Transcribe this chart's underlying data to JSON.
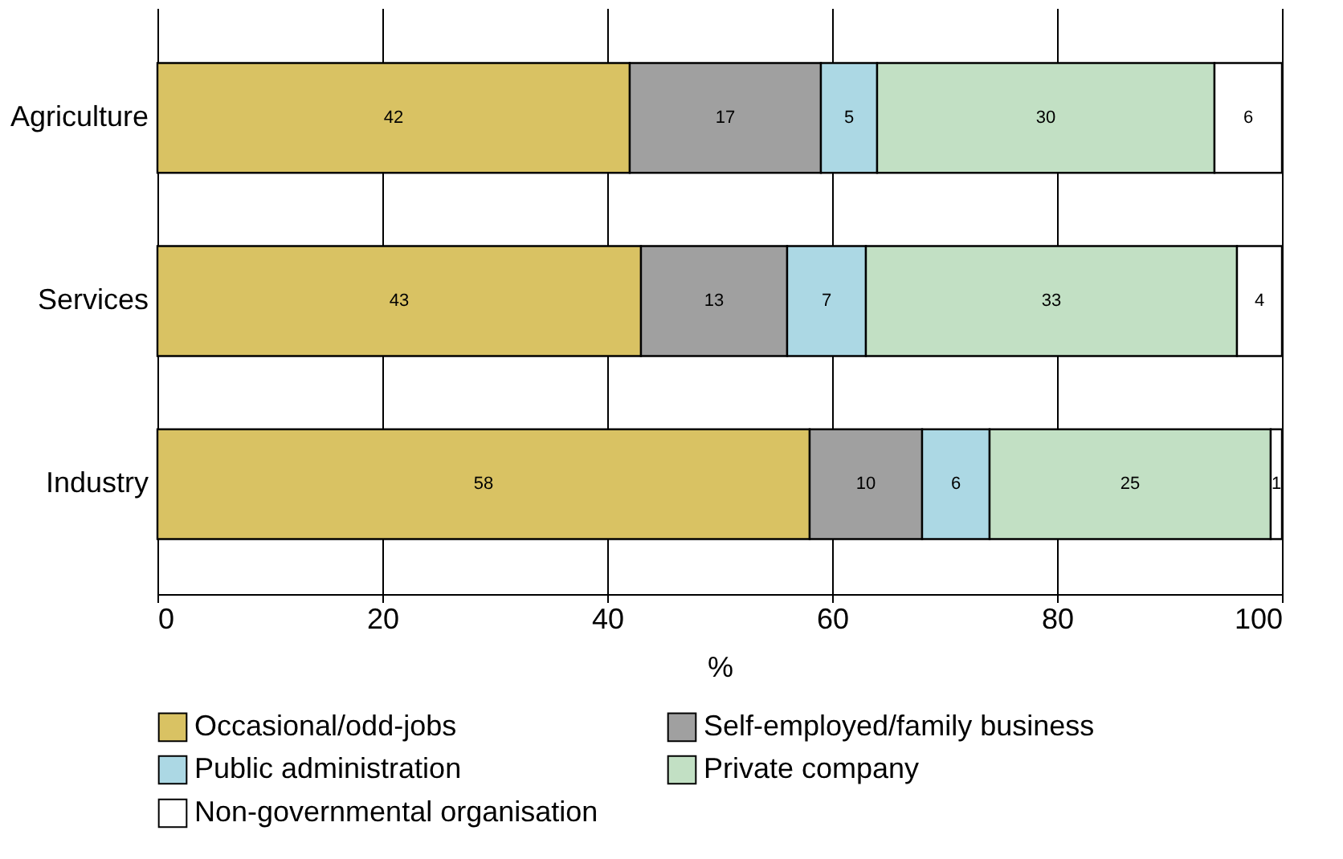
{
  "chart_data": {
    "type": "bar",
    "orientation": "horizontal",
    "stacked": true,
    "xlabel": "%",
    "categories": [
      "Agriculture",
      "Services",
      "Industry"
    ],
    "series": [
      {
        "name": "Occasional/odd-jobs",
        "color": "#d9c263",
        "values": [
          42,
          43,
          58
        ]
      },
      {
        "name": "Self-employed/family business",
        "color": "#a0a0a0",
        "values": [
          17,
          13,
          10
        ]
      },
      {
        "name": "Public administration",
        "color": "#acd8e4",
        "values": [
          5,
          7,
          6
        ]
      },
      {
        "name": "Private company",
        "color": "#c2e0c4",
        "values": [
          30,
          33,
          25
        ]
      },
      {
        "name": "Non-governmental organisation",
        "color": "#ffffff",
        "values": [
          6,
          4,
          1
        ]
      }
    ],
    "xlim": [
      0,
      100
    ],
    "xticks": [
      0,
      20,
      40,
      60,
      80,
      100
    ],
    "grid": "x",
    "legend": "bottom",
    "data_labels": true
  }
}
